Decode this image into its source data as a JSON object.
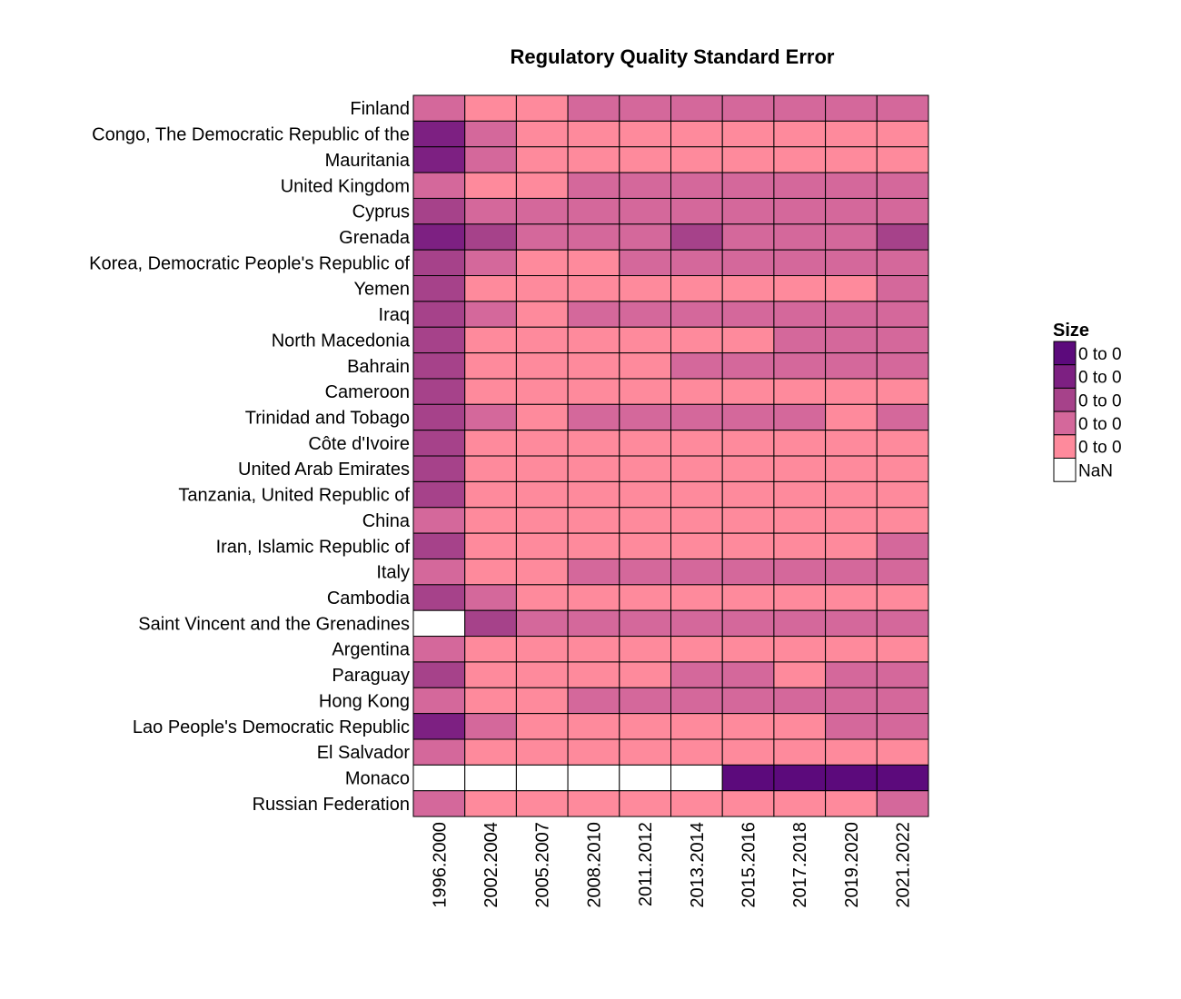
{
  "chart_data": {
    "type": "heatmap",
    "title": "Regulatory Quality Standard Error",
    "x": [
      "1996.2000",
      "2002.2004",
      "2005.2007",
      "2008.2010",
      "2011.2012",
      "2013.2014",
      "2015.2016",
      "2017.2018",
      "2019.2020",
      "2021.2022"
    ],
    "y": [
      "Finland",
      "Congo, The Democratic Republic of the",
      "Mauritania",
      "United Kingdom",
      "Cyprus",
      "Grenada",
      "Korea, Democratic People's Republic of",
      "Yemen",
      "Iraq",
      "North Macedonia",
      "Bahrain",
      "Cameroon",
      "Trinidad and Tobago",
      "Côte d'Ivoire",
      "United Arab Emirates",
      "Tanzania, United Republic of",
      "China",
      "Iran, Islamic Republic of",
      "Italy",
      "Cambodia",
      "Saint Vincent and the Grenadines",
      "Argentina",
      "Paraguay",
      "Hong Kong",
      "Lao People's Democratic Republic",
      "El Salvador",
      "Monaco",
      "Russian Federation"
    ],
    "values": [
      [
        2,
        1,
        1,
        2,
        2,
        2,
        2,
        2,
        2,
        2
      ],
      [
        4,
        2,
        1,
        1,
        1,
        1,
        1,
        1,
        1,
        1
      ],
      [
        4,
        2,
        1,
        1,
        1,
        1,
        1,
        1,
        1,
        1
      ],
      [
        2,
        1,
        1,
        2,
        2,
        2,
        2,
        2,
        2,
        2
      ],
      [
        3,
        2,
        2,
        2,
        2,
        2,
        2,
        2,
        2,
        2
      ],
      [
        4,
        3,
        2,
        2,
        2,
        3,
        2,
        2,
        2,
        3
      ],
      [
        3,
        2,
        1,
        1,
        2,
        2,
        2,
        2,
        2,
        2
      ],
      [
        3,
        1,
        1,
        1,
        1,
        1,
        1,
        1,
        1,
        2
      ],
      [
        3,
        2,
        1,
        2,
        2,
        2,
        2,
        2,
        2,
        2
      ],
      [
        3,
        1,
        1,
        1,
        1,
        1,
        1,
        2,
        2,
        2
      ],
      [
        3,
        1,
        1,
        1,
        1,
        2,
        2,
        2,
        2,
        2
      ],
      [
        3,
        1,
        1,
        1,
        1,
        1,
        1,
        1,
        1,
        1
      ],
      [
        3,
        2,
        1,
        2,
        2,
        2,
        2,
        2,
        1,
        2
      ],
      [
        3,
        1,
        1,
        1,
        1,
        1,
        1,
        1,
        1,
        1
      ],
      [
        3,
        1,
        1,
        1,
        1,
        1,
        1,
        1,
        1,
        1
      ],
      [
        3,
        1,
        1,
        1,
        1,
        1,
        1,
        1,
        1,
        1
      ],
      [
        2,
        1,
        1,
        1,
        1,
        1,
        1,
        1,
        1,
        1
      ],
      [
        3,
        1,
        1,
        1,
        1,
        1,
        1,
        1,
        1,
        2
      ],
      [
        2,
        1,
        1,
        2,
        2,
        2,
        2,
        2,
        2,
        2
      ],
      [
        3,
        2,
        1,
        1,
        1,
        1,
        1,
        1,
        1,
        1
      ],
      [
        null,
        3,
        2,
        2,
        2,
        2,
        2,
        2,
        2,
        2
      ],
      [
        2,
        1,
        1,
        1,
        1,
        1,
        1,
        1,
        1,
        1
      ],
      [
        3,
        1,
        1,
        1,
        1,
        2,
        2,
        1,
        2,
        2
      ],
      [
        2,
        1,
        1,
        2,
        2,
        2,
        2,
        2,
        2,
        2
      ],
      [
        4,
        2,
        1,
        1,
        1,
        1,
        1,
        1,
        2,
        2
      ],
      [
        2,
        1,
        1,
        1,
        1,
        1,
        1,
        1,
        1,
        1
      ],
      [
        null,
        null,
        null,
        null,
        null,
        null,
        5,
        5,
        5,
        5
      ],
      [
        2,
        1,
        1,
        1,
        1,
        1,
        1,
        1,
        1,
        2
      ]
    ],
    "legend": {
      "title": "Size",
      "placement": "right",
      "bins": [
        {
          "label": "0 to 0",
          "color": "#5c0a7c"
        },
        {
          "label": "0 to 0",
          "color": "#7d2082"
        },
        {
          "label": "0 to 0",
          "color": "#a6428a"
        },
        {
          "label": "0 to 0",
          "color": "#d4689b"
        },
        {
          "label": "0 to 0",
          "color": "#fe8a9c"
        }
      ],
      "nan": {
        "label": "NaN",
        "color": "#ffffff"
      }
    }
  }
}
